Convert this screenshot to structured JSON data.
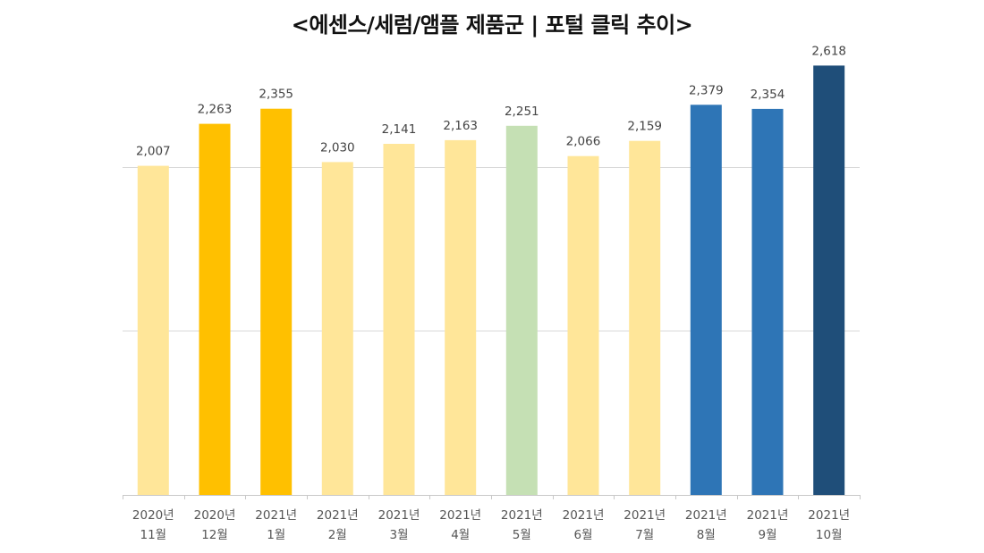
{
  "chart_data": {
    "type": "bar",
    "title": "<에센스/세럼/앰플 제품군 | 포털 클릭 추이>",
    "xlabel": "",
    "ylabel": "",
    "ylim": [
      0,
      2800
    ],
    "grid": true,
    "categories": [
      [
        "2020년",
        "11월"
      ],
      [
        "2020년",
        "12월"
      ],
      [
        "2021년",
        "1월"
      ],
      [
        "2021년",
        "2월"
      ],
      [
        "2021년",
        "3월"
      ],
      [
        "2021년",
        "4월"
      ],
      [
        "2021년",
        "5월"
      ],
      [
        "2021년",
        "6월"
      ],
      [
        "2021년",
        "7월"
      ],
      [
        "2021년",
        "8월"
      ],
      [
        "2021년",
        "9월"
      ],
      [
        "2021년",
        "10월"
      ]
    ],
    "values": [
      2007,
      2263,
      2355,
      2030,
      2141,
      2163,
      2251,
      2066,
      2159,
      2379,
      2354,
      2618
    ],
    "value_labels": [
      "2,007",
      "2,263",
      "2,355",
      "2,030",
      "2,141",
      "2,163",
      "2,251",
      "2,066",
      "2,159",
      "2,379",
      "2,354",
      "2,618"
    ],
    "bar_colors": [
      "#FFE699",
      "#FFC000",
      "#FFC000",
      "#FFE699",
      "#FFE699",
      "#FFE699",
      "#C5E0B4",
      "#FFE699",
      "#FFE699",
      "#2E75B6",
      "#2E75B6",
      "#1F4E79"
    ]
  }
}
